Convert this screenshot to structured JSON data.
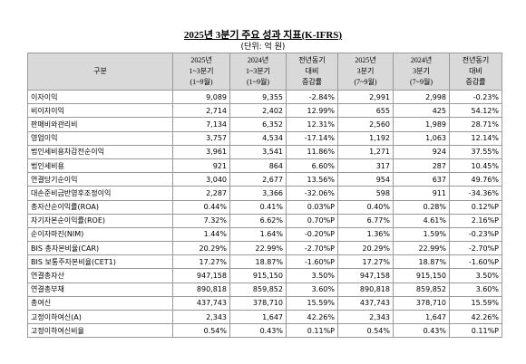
{
  "title": "2025년 3분기 주요 성과 지표(K-IFRS)",
  "unit": "(단위: 억 원)",
  "table": {
    "header": [
      [
        "구분"
      ],
      [
        "2025년",
        "1~3분기",
        "(1~9월)"
      ],
      [
        "2024년",
        "1~3분기",
        "(1~9월)"
      ],
      [
        "전년동기",
        "대비",
        "증감률"
      ],
      [
        "2025년",
        "3분기",
        "(7~9월)"
      ],
      [
        "2024년",
        "3분기",
        "(7~9월)"
      ],
      [
        "전년동기",
        "대비",
        "증감률"
      ]
    ],
    "rows": [
      [
        "이자이익",
        "9,089",
        "9,355",
        "-2.84%",
        "2,991",
        "2,998",
        "-0.23%"
      ],
      [
        "비이자이익",
        "2,714",
        "2,402",
        "12.99%",
        "655",
        "425",
        "54.12%"
      ],
      [
        "판매비와관리비",
        "7,134",
        "6,352",
        "12.31%",
        "2,560",
        "1,989",
        "28.71%"
      ],
      [
        "영업이익",
        "3,757",
        "4,534",
        "-17.14%",
        "1,192",
        "1,063",
        "12.14%"
      ],
      [
        "법인세비용차감전순이익",
        "3,961",
        "3,541",
        "11.86%",
        "1,271",
        "924",
        "37.55%"
      ],
      [
        "법인세비용",
        "921",
        "864",
        "6.60%",
        "317",
        "287",
        "10.45%"
      ],
      [
        "연결당기순이익",
        "3,040",
        "2,677",
        "13.56%",
        "954",
        "637",
        "49.76%"
      ],
      [
        "대손준비금반영후조정이익",
        "2,287",
        "3,366",
        "-32.06%",
        "598",
        "911",
        "-34.36%"
      ],
      [
        "총자산순이익률(ROA)",
        "0.44%",
        "0.41%",
        "0.03%P",
        "0.40%",
        "0.28%",
        "0.12%P"
      ],
      [
        "자기자본순이익률(ROE)",
        "7.32%",
        "6.62%",
        "0.70%P",
        "6.77%",
        "4.61%",
        "2.16%P"
      ],
      [
        "순이자마진(NIM)",
        "1.44%",
        "1.64%",
        "-0.20%P",
        "1.36%",
        "1.59%",
        "-0.23%P"
      ],
      [
        "BIS 총자본비율(CAR)",
        "20.29%",
        "22.99%",
        "-2.70%P",
        "20.29%",
        "22.99%",
        "-2.70%P"
      ],
      [
        "BIS 보통주자본비율(CET1)",
        "17.27%",
        "18.87%",
        "-1.60%P",
        "17.27%",
        "18.87%",
        "-1.60%P"
      ],
      [
        "연결총자산",
        "947,158",
        "915,150",
        "3.50%",
        "947,158",
        "915,150",
        "3.50%"
      ],
      [
        "연결총부채",
        "890,818",
        "859,852",
        "3.60%",
        "890,818",
        "859,852",
        "3.60%"
      ],
      [
        "총여신",
        "437,743",
        "378,710",
        "15.59%",
        "437,743",
        "378,710",
        "15.59%"
      ],
      [
        "고정이하여신(A)",
        "2,343",
        "1,647",
        "42.26%",
        "2,343",
        "1,647",
        "42.26%"
      ],
      [
        "고정이하여신비율",
        "0.54%",
        "0.43%",
        "0.11%P",
        "0.54%",
        "0.43%",
        "0.11%P"
      ]
    ]
  }
}
